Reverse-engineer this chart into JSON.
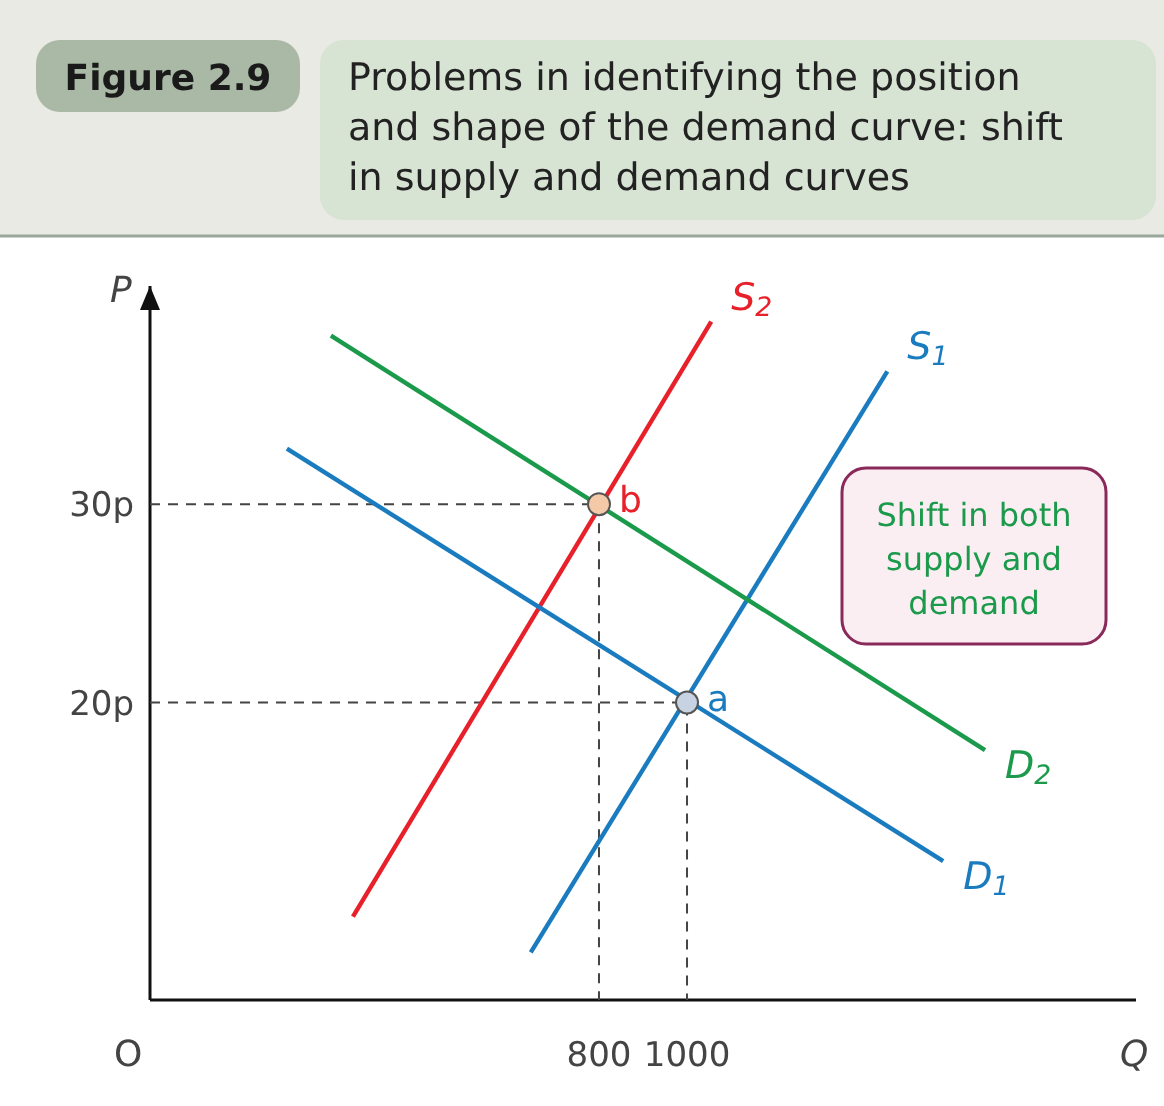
{
  "chart_data": {
    "type": "line",
    "title": "Problems in identifying the position and shape of the demand curve: shift in supply and demand curves",
    "xlabel": "Q",
    "ylabel": "P",
    "xlim": [
      -220,
      2020
    ],
    "ylim": [
      5,
      41
    ],
    "xticks": [
      800,
      1000
    ],
    "yticks": [
      {
        "value": 20,
        "label": "20p"
      },
      {
        "value": 30,
        "label": "30p"
      }
    ],
    "series": [
      {
        "type": "line",
        "line_style": "dashed",
        "color": "#444444",
        "x": [
          -220,
          800,
          800
        ],
        "values": [
          30,
          30,
          5
        ]
      },
      {
        "type": "line",
        "line_style": "dashed",
        "color": "#444444",
        "x": [
          -220,
          1000,
          1000
        ],
        "values": [
          20,
          20,
          5
        ]
      },
      {
        "name": "S$_{1}$",
        "color": "#1a7bbf",
        "x": [
          645,
          1455
        ],
        "values": [
          7.4,
          36.7
        ]
      },
      {
        "name": "S$_{2}$",
        "color": "#e8202a",
        "x": [
          241,
          1055
        ],
        "values": [
          9.2,
          39.2
        ]
      },
      {
        "name": "D$_{1}$",
        "color": "#1a7bbf",
        "x": [
          91,
          1582
        ],
        "values": [
          32.8,
          12.0
        ]
      },
      {
        "name": "D$_{2}$",
        "color": "#1a9a4a",
        "x": [
          191,
          1677
        ],
        "values": [
          38.5,
          17.6
        ]
      },
      {
        "type": "scatter",
        "marker": "circle",
        "x": [
          1000,
          800
        ],
        "values": [
          20,
          30
        ],
        "colors": [
          "#c7d3e3",
          "#f4c9a8"
        ]
      }
    ],
    "annotations": [
      "Figure 2.9",
      "O",
      "Shift in both supply and demand",
      {
        "text": "a",
        "x": 1000,
        "y": 20
      },
      {
        "text": "b",
        "x": 800,
        "y": 30
      }
    ]
  }
}
